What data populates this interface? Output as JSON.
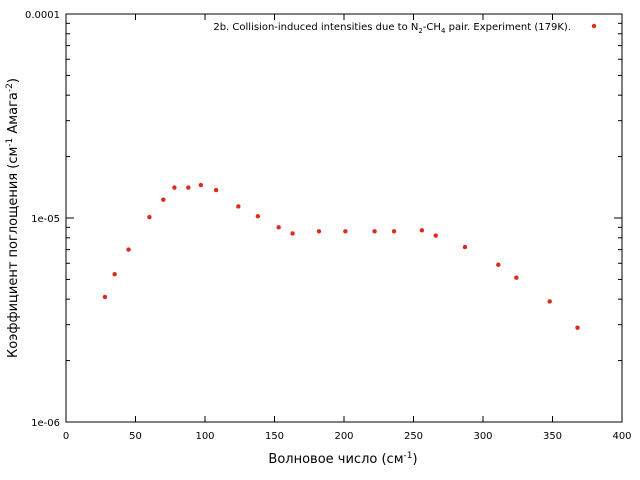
{
  "chart_data": {
    "type": "scatter",
    "xlabel": {
      "text": "Волновое число (см",
      "sup": "-1",
      "close": ")"
    },
    "ylabel": {
      "prefix": "Коэффициент поглощения (см",
      "sup1": "-1",
      "mid": " Амага",
      "sup2": "-2",
      "close": ")"
    },
    "xlim": [
      0,
      400
    ],
    "ylim": [
      1e-06,
      0.0001
    ],
    "yscale": "log",
    "grid": false,
    "legend_position": "top-right",
    "x_ticks": [
      {
        "value": 0,
        "label": "0"
      },
      {
        "value": 50,
        "label": "50"
      },
      {
        "value": 100,
        "label": "100"
      },
      {
        "value": 150,
        "label": "150"
      },
      {
        "value": 200,
        "label": "200"
      },
      {
        "value": 250,
        "label": "250"
      },
      {
        "value": 300,
        "label": "300"
      },
      {
        "value": 350,
        "label": "350"
      },
      {
        "value": 400,
        "label": "400"
      }
    ],
    "y_ticks": [
      {
        "value": 0.0001,
        "label": "0.0001"
      },
      {
        "value": 1e-05,
        "label": "1e-05"
      },
      {
        "value": 1e-06,
        "label": "1e-06"
      }
    ],
    "series": [
      {
        "legend": {
          "t1": "2b. Collision-induced intensities due to N",
          "s1": "2",
          "t2": "-CH",
          "s2": "4",
          "t3": " pair. Experiment (179K)."
        },
        "color": "#dd2a1b",
        "x": [
          28,
          35,
          45,
          60,
          70,
          78,
          88,
          97,
          108,
          124,
          138,
          153,
          163,
          182,
          201,
          222,
          236,
          256,
          266,
          287,
          311,
          324,
          348,
          368
        ],
        "y": [
          4.1e-06,
          5.3e-06,
          7e-06,
          1.01e-05,
          1.23e-05,
          1.41e-05,
          1.41e-05,
          1.45e-05,
          1.37e-05,
          1.14e-05,
          1.02e-05,
          9e-06,
          8.4e-06,
          8.6e-06,
          8.6e-06,
          8.6e-06,
          8.6e-06,
          8.7e-06,
          8.2e-06,
          7.2e-06,
          5.9e-06,
          5.1e-06,
          3.9e-06,
          2.9e-06
        ]
      }
    ]
  }
}
